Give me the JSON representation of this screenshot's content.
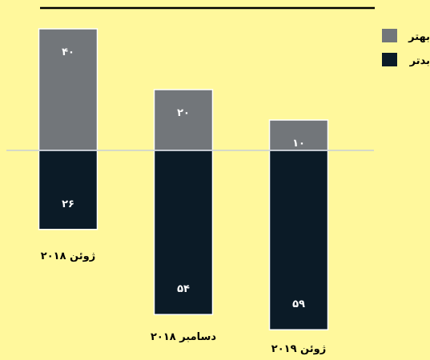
{
  "chart_data": {
    "type": "bar",
    "stacking": "diverging",
    "categories": [
      "ژوئن ۲۰۱۸",
      "دسامبر ۲۰۱۸",
      "ژوئن ۲۰۱۹"
    ],
    "series": [
      {
        "name": "بهتر",
        "values": [
          40,
          20,
          10
        ],
        "labels": [
          "۴۰",
          "۲۰",
          "۱۰"
        ],
        "color": "#72767a",
        "direction": "up"
      },
      {
        "name": "بدتر",
        "values": [
          26,
          54,
          59
        ],
        "labels": [
          "۲۶",
          "۵۴",
          "۵۹"
        ],
        "color": "#0b1b27",
        "direction": "down"
      }
    ],
    "legend_position": "top-right",
    "baseline_color": "#c9cfd6",
    "top_rule_color": "#000000",
    "bar_border_color": "#ffffff"
  }
}
